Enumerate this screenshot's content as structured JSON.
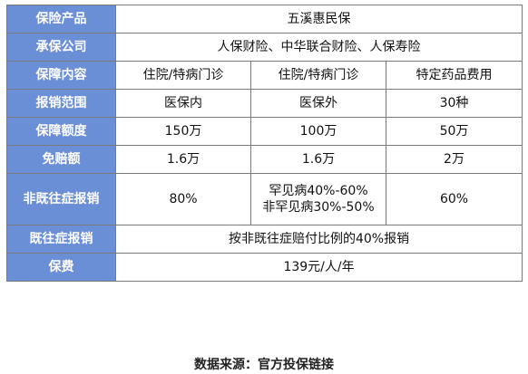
{
  "table": {
    "rows": [
      {
        "label": "保险产品",
        "cells": [
          "五溪惠民保"
        ]
      },
      {
        "label": "承保公司",
        "cells": [
          "人保财险、中华联合财险、人保寿险"
        ]
      },
      {
        "label": "保障内容",
        "cells": [
          "住院/特病门诊",
          "住院/特病门诊",
          "特定药品费用"
        ]
      },
      {
        "label": "报销范围",
        "cells": [
          "医保内",
          "医保外",
          "30种"
        ]
      },
      {
        "label": "保障额度",
        "cells": [
          "150万",
          "100万",
          "50万"
        ]
      },
      {
        "label": "免赔额",
        "cells": [
          "1.6万",
          "1.6万",
          "2万"
        ]
      },
      {
        "label": "非既往症报销",
        "cells": [
          "80%",
          [
            "罕见病40%-60%",
            "非罕见病30%-50%"
          ],
          "60%"
        ]
      },
      {
        "label": "既往症报销",
        "cells": [
          "按非既往症赔付比例的40%报销"
        ]
      },
      {
        "label": "保费",
        "cells": [
          "139元/人/年"
        ]
      }
    ]
  },
  "footer": "数据来源：官方投保链接",
  "colors": {
    "header_bg": "#6b8fd6",
    "border": "#7a7a7a"
  }
}
